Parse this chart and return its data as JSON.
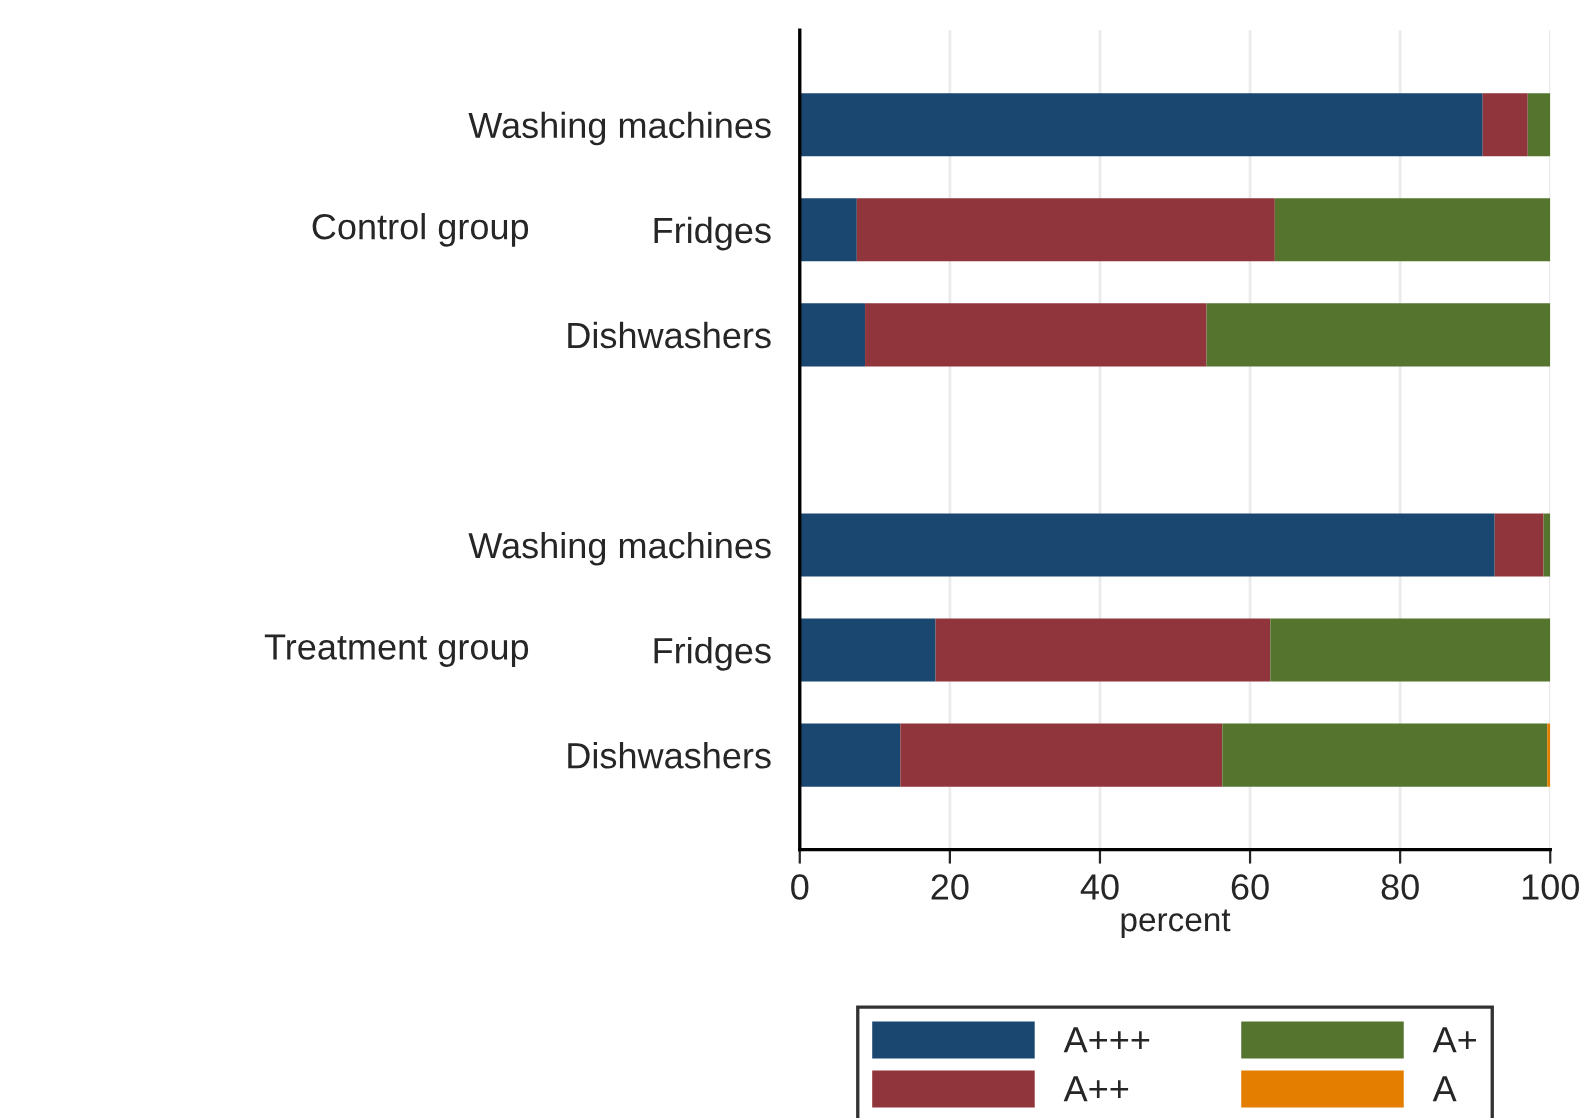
{
  "chart_data": {
    "type": "bar",
    "orientation": "horizontal",
    "stacked": true,
    "xlabel": "percent",
    "categories": [
      "Washing machines",
      "Fridges",
      "Dishwashers",
      null,
      "Washing machines",
      "Fridges",
      "Dishwashers"
    ],
    "series": [
      {
        "name": "A+++",
        "color": "#1a476f",
        "values": [
          91,
          7.6,
          8.7,
          null,
          92.6,
          18.1,
          13.4
        ]
      },
      {
        "name": "A++",
        "color": "#90353b",
        "values": [
          6,
          55.7,
          45.5,
          null,
          6.5,
          44.6,
          42.9
        ]
      },
      {
        "name": "A+",
        "color": "#55752f",
        "values": [
          3,
          36.7,
          45.8,
          null,
          0.9,
          37.3,
          43.3
        ]
      },
      {
        "name": "A",
        "color": "#e37e00",
        "values": [
          null,
          null,
          null,
          null,
          null,
          null,
          0.4
        ]
      }
    ],
    "annotations": [
      "Control group",
      "Treatment group"
    ],
    "xlim": [
      0,
      100
    ],
    "xticks": [
      0,
      20,
      40,
      60,
      80,
      100
    ],
    "grid": "x",
    "legend": "bottom"
  }
}
